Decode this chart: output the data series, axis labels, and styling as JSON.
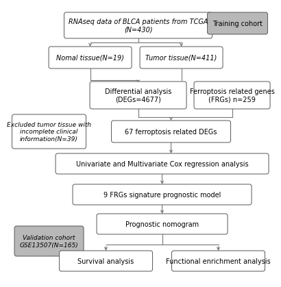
{
  "boxes": {
    "top": "RNAseq data of BLCA patients from TCGA\n(N=430)",
    "training": "Training cohort",
    "normal": "Nomal tissue(N=19)",
    "tumor": "Tumor tissue(N=411)",
    "diff": "Differential analysis\n(DEGs=4677)",
    "frg": "Ferroptosis related genes\n(FRGs) n=259",
    "excluded": "Excluded tumor tissue with\nincomplete clinical\ninformation(N=39)",
    "degs67": "67 ferroptosis related DEGs",
    "cox": "Univariate and Multivariate Cox regression analysis",
    "model": "9 FRGs signature prognostic model",
    "nomogram": "Prognostic nomogram",
    "validation": "Validation cohort\nGSE13507(N=165)",
    "survival": "Survival analysis",
    "functional": "Functional enrichment analysis"
  },
  "bg_color": "#ffffff",
  "box_fill": "#ffffff",
  "gray_fill": "#b8b8b8",
  "edge_color": "#555555",
  "arrow_color": "#777777",
  "line_color": "#777777",
  "font_size": 7.0,
  "italic_size": 7.0
}
